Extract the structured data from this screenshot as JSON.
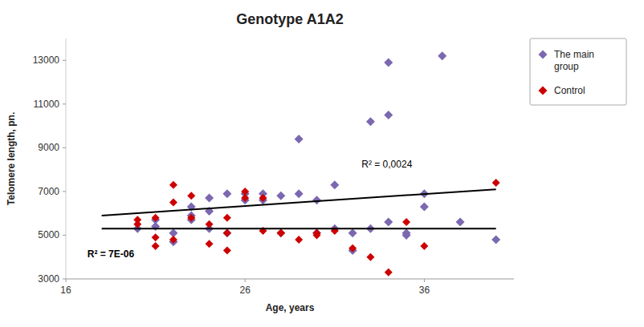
{
  "chart_data": {
    "type": "scatter",
    "title": "Genotype A1A2",
    "x_label": "Age, years",
    "y_label": "Telomere length, pn.",
    "xlim": [
      16,
      41
    ],
    "ylim": [
      3000,
      14000
    ],
    "xticks": [
      16,
      26,
      36
    ],
    "yticks": [
      3000,
      5000,
      7000,
      9000,
      11000,
      13000
    ],
    "grid": false,
    "legend": "right",
    "series": [
      {
        "name": "The main\ngroup",
        "color": "#7B68B0",
        "marker": "diamond",
        "x": [
          20,
          21,
          21,
          22,
          22,
          23,
          23,
          23,
          24,
          24,
          24,
          25,
          25,
          26,
          26,
          27,
          27,
          28,
          28,
          29,
          29,
          30,
          30,
          31,
          31,
          32,
          32,
          33,
          33,
          34,
          34,
          34,
          35,
          35,
          36,
          36,
          37,
          38,
          40
        ],
        "values": [
          5300,
          5700,
          5400,
          4700,
          5100,
          5900,
          6300,
          5700,
          6700,
          6100,
          5300,
          6900,
          5100,
          6900,
          6600,
          6900,
          6600,
          6800,
          5100,
          9400,
          6900,
          6600,
          5100,
          5300,
          7300,
          5100,
          4300,
          10200,
          5300,
          12900,
          10500,
          5600,
          5100,
          5000,
          6300,
          6900,
          13200,
          5600,
          4800
        ],
        "trend": {
          "x": [
            18,
            40
          ],
          "values": [
            5900,
            7100
          ],
          "color": "#000000"
        }
      },
      {
        "name": "Control",
        "color": "#CC0000",
        "marker": "diamond",
        "x": [
          20,
          20,
          21,
          21,
          21,
          22,
          22,
          22,
          23,
          23,
          24,
          24,
          25,
          25,
          25,
          26,
          26,
          27,
          27,
          28,
          28,
          29,
          30,
          30,
          31,
          32,
          33,
          34,
          35,
          36,
          40
        ],
        "values": [
          5500,
          5700,
          5800,
          4900,
          4500,
          7300,
          6500,
          4800,
          6800,
          5800,
          5500,
          4600,
          5800,
          5100,
          4300,
          7000,
          6700,
          5200,
          6700,
          5100,
          5100,
          4800,
          5000,
          5100,
          5200,
          4400,
          4000,
          3300,
          5600,
          4500,
          7400
        ],
        "trend": {
          "x": [
            18,
            40
          ],
          "values": [
            5300,
            5300
          ],
          "color": "#000000"
        }
      }
    ],
    "annotations": [
      {
        "text": "R² = 0,0024",
        "x": 32.5,
        "y": 8100
      },
      {
        "text": "R² = 7E-06",
        "x": 17.2,
        "y": 4000
      }
    ]
  }
}
